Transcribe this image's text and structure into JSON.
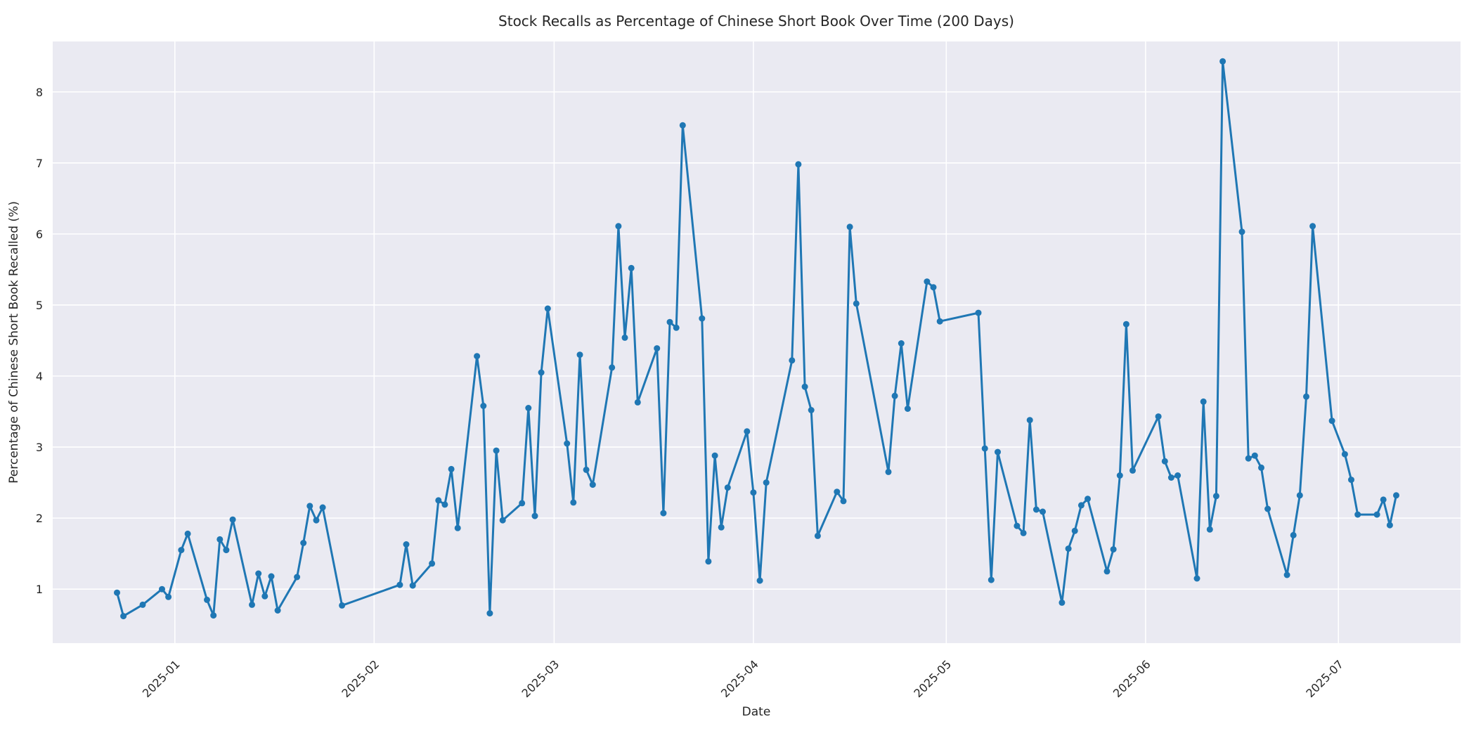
{
  "chart_data": {
    "type": "line",
    "title": "Stock Recalls as Percentage of Chinese Short Book Over Time (200 Days)",
    "xlabel": "Date",
    "ylabel": "Percentage of Chinese Short Book Recalled (%)",
    "legend": null,
    "grid": true,
    "style": {
      "figure_bg": "#ffffff",
      "axes_bg": "#eaeaf2",
      "grid_color": "#ffffff",
      "line_color": "#1f77b4",
      "marker": "circle",
      "text_color": "#262626"
    },
    "xlim": [
      "2024-12-13",
      "2025-07-20"
    ],
    "ylim": [
      0.24,
      8.71
    ],
    "x_ticks": [
      {
        "date": "2025-01-01",
        "label": "2025-01"
      },
      {
        "date": "2025-02-01",
        "label": "2025-02"
      },
      {
        "date": "2025-03-01",
        "label": "2025-03"
      },
      {
        "date": "2025-04-01",
        "label": "2025-04"
      },
      {
        "date": "2025-05-01",
        "label": "2025-05"
      },
      {
        "date": "2025-06-01",
        "label": "2025-06"
      },
      {
        "date": "2025-07-01",
        "label": "2025-07"
      }
    ],
    "y_ticks": [
      1,
      2,
      3,
      4,
      5,
      6,
      7,
      8
    ],
    "series": [
      {
        "name": "recall_pct_of_short_book",
        "points": [
          [
            "2024-12-23",
            0.95
          ],
          [
            "2024-12-24",
            0.62
          ],
          [
            "2024-12-27",
            0.78
          ],
          [
            "2024-12-30",
            1.0
          ],
          [
            "2024-12-31",
            0.89
          ],
          [
            "2025-01-02",
            1.55
          ],
          [
            "2025-01-03",
            1.78
          ],
          [
            "2025-01-06",
            0.85
          ],
          [
            "2025-01-07",
            0.63
          ],
          [
            "2025-01-08",
            1.7
          ],
          [
            "2025-01-09",
            1.55
          ],
          [
            "2025-01-10",
            1.98
          ],
          [
            "2025-01-13",
            0.78
          ],
          [
            "2025-01-14",
            1.22
          ],
          [
            "2025-01-15",
            0.9
          ],
          [
            "2025-01-16",
            1.18
          ],
          [
            "2025-01-17",
            0.7
          ],
          [
            "2025-01-20",
            1.17
          ],
          [
            "2025-01-21",
            1.65
          ],
          [
            "2025-01-22",
            2.17
          ],
          [
            "2025-01-23",
            1.97
          ],
          [
            "2025-01-24",
            2.15
          ],
          [
            "2025-01-27",
            0.77
          ],
          [
            "2025-02-05",
            1.06
          ],
          [
            "2025-02-06",
            1.63
          ],
          [
            "2025-02-07",
            1.05
          ],
          [
            "2025-02-10",
            1.36
          ],
          [
            "2025-02-11",
            2.25
          ],
          [
            "2025-02-12",
            2.19
          ],
          [
            "2025-02-13",
            2.69
          ],
          [
            "2025-02-14",
            1.86
          ],
          [
            "2025-02-17",
            4.28
          ],
          [
            "2025-02-18",
            3.58
          ],
          [
            "2025-02-19",
            0.66
          ],
          [
            "2025-02-20",
            2.95
          ],
          [
            "2025-02-21",
            1.97
          ],
          [
            "2025-02-24",
            2.21
          ],
          [
            "2025-02-25",
            3.55
          ],
          [
            "2025-02-26",
            2.03
          ],
          [
            "2025-02-27",
            4.05
          ],
          [
            "2025-02-28",
            4.95
          ],
          [
            "2025-03-03",
            3.05
          ],
          [
            "2025-03-04",
            2.22
          ],
          [
            "2025-03-05",
            4.3
          ],
          [
            "2025-03-06",
            2.68
          ],
          [
            "2025-03-07",
            2.47
          ],
          [
            "2025-03-10",
            4.12
          ],
          [
            "2025-03-11",
            6.11
          ],
          [
            "2025-03-12",
            4.54
          ],
          [
            "2025-03-13",
            5.52
          ],
          [
            "2025-03-14",
            3.63
          ],
          [
            "2025-03-17",
            4.39
          ],
          [
            "2025-03-18",
            2.07
          ],
          [
            "2025-03-19",
            4.76
          ],
          [
            "2025-03-20",
            4.68
          ],
          [
            "2025-03-21",
            7.53
          ],
          [
            "2025-03-24",
            4.81
          ],
          [
            "2025-03-25",
            1.39
          ],
          [
            "2025-03-26",
            2.88
          ],
          [
            "2025-03-27",
            1.87
          ],
          [
            "2025-03-28",
            2.43
          ],
          [
            "2025-03-31",
            3.22
          ],
          [
            "2025-04-01",
            2.36
          ],
          [
            "2025-04-02",
            1.12
          ],
          [
            "2025-04-03",
            2.5
          ],
          [
            "2025-04-07",
            4.22
          ],
          [
            "2025-04-08",
            6.98
          ],
          [
            "2025-04-09",
            3.85
          ],
          [
            "2025-04-10",
            3.52
          ],
          [
            "2025-04-11",
            1.75
          ],
          [
            "2025-04-14",
            2.37
          ],
          [
            "2025-04-15",
            2.24
          ],
          [
            "2025-04-16",
            6.1
          ],
          [
            "2025-04-17",
            5.02
          ],
          [
            "2025-04-22",
            2.65
          ],
          [
            "2025-04-23",
            3.72
          ],
          [
            "2025-04-24",
            4.46
          ],
          [
            "2025-04-25",
            3.54
          ],
          [
            "2025-04-28",
            5.33
          ],
          [
            "2025-04-29",
            5.25
          ],
          [
            "2025-04-30",
            4.77
          ],
          [
            "2025-05-06",
            4.89
          ],
          [
            "2025-05-07",
            2.98
          ],
          [
            "2025-05-08",
            1.13
          ],
          [
            "2025-05-09",
            2.93
          ],
          [
            "2025-05-12",
            1.89
          ],
          [
            "2025-05-13",
            1.79
          ],
          [
            "2025-05-14",
            3.38
          ],
          [
            "2025-05-15",
            2.12
          ],
          [
            "2025-05-16",
            2.09
          ],
          [
            "2025-05-19",
            0.81
          ],
          [
            "2025-05-20",
            1.57
          ],
          [
            "2025-05-21",
            1.82
          ],
          [
            "2025-05-22",
            2.18
          ],
          [
            "2025-05-23",
            2.27
          ],
          [
            "2025-05-26",
            1.25
          ],
          [
            "2025-05-27",
            1.56
          ],
          [
            "2025-05-28",
            2.6
          ],
          [
            "2025-05-29",
            4.73
          ],
          [
            "2025-05-30",
            2.67
          ],
          [
            "2025-06-03",
            3.43
          ],
          [
            "2025-06-04",
            2.8
          ],
          [
            "2025-06-05",
            2.57
          ],
          [
            "2025-06-06",
            2.6
          ],
          [
            "2025-06-09",
            1.15
          ],
          [
            "2025-06-10",
            3.64
          ],
          [
            "2025-06-11",
            1.84
          ],
          [
            "2025-06-12",
            2.31
          ],
          [
            "2025-06-13",
            8.43
          ],
          [
            "2025-06-16",
            6.03
          ],
          [
            "2025-06-17",
            2.84
          ],
          [
            "2025-06-18",
            2.88
          ],
          [
            "2025-06-19",
            2.71
          ],
          [
            "2025-06-20",
            2.13
          ],
          [
            "2025-06-23",
            1.2
          ],
          [
            "2025-06-24",
            1.76
          ],
          [
            "2025-06-25",
            2.32
          ],
          [
            "2025-06-26",
            3.71
          ],
          [
            "2025-06-27",
            6.11
          ],
          [
            "2025-06-30",
            3.37
          ],
          [
            "2025-07-02",
            2.9
          ],
          [
            "2025-07-03",
            2.54
          ],
          [
            "2025-07-04",
            2.05
          ],
          [
            "2025-07-07",
            2.05
          ],
          [
            "2025-07-08",
            2.26
          ],
          [
            "2025-07-09",
            1.9
          ],
          [
            "2025-07-10",
            2.32
          ]
        ]
      }
    ]
  }
}
